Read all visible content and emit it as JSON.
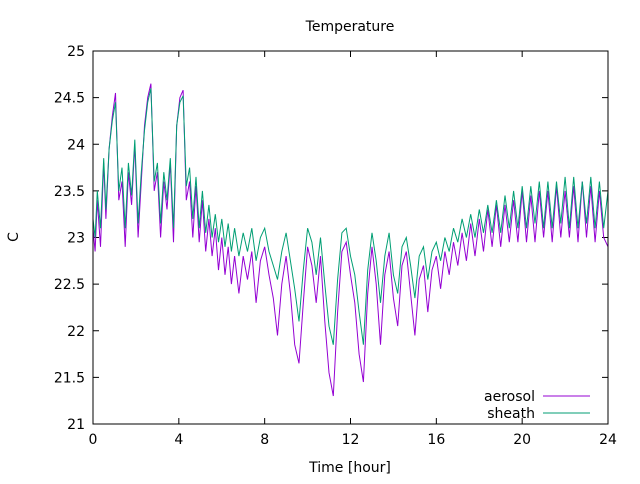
{
  "chart_data": {
    "type": "line",
    "title": "Temperature",
    "xlabel": "Time [hour]",
    "ylabel": "C",
    "xlim": [
      0,
      24
    ],
    "ylim": [
      21,
      25
    ],
    "xticks": [
      0,
      4,
      8,
      12,
      16,
      20,
      24
    ],
    "xtick_labels": [
      "0",
      "4",
      "8",
      "12",
      "16",
      "20",
      "24"
    ],
    "yticks": [
      21,
      21.5,
      22,
      22.5,
      23,
      23.5,
      24,
      24.5,
      25
    ],
    "ytick_labels": [
      "21",
      "21.5",
      "22",
      "22.5",
      "23",
      "23.5",
      "24",
      "24.5",
      "25"
    ],
    "grid": false,
    "legend_position": "bottom-right",
    "series": [
      {
        "name": "aerosol",
        "color": "#9400d3",
        "x": [
          0,
          0.1,
          0.2,
          0.35,
          0.5,
          0.6,
          0.75,
          0.9,
          1.05,
          1.2,
          1.35,
          1.5,
          1.65,
          1.8,
          1.95,
          2.1,
          2.25,
          2.4,
          2.55,
          2.7,
          2.85,
          3.0,
          3.15,
          3.3,
          3.45,
          3.6,
          3.75,
          3.9,
          4.05,
          4.2,
          4.35,
          4.5,
          4.65,
          4.8,
          4.95,
          5.1,
          5.25,
          5.4,
          5.55,
          5.7,
          5.85,
          6.0,
          6.15,
          6.3,
          6.45,
          6.6,
          6.8,
          7.0,
          7.2,
          7.4,
          7.6,
          7.8,
          8.0,
          8.2,
          8.4,
          8.6,
          8.8,
          9.0,
          9.2,
          9.4,
          9.6,
          9.8,
          10.0,
          10.2,
          10.4,
          10.6,
          10.8,
          11.0,
          11.2,
          11.4,
          11.6,
          11.8,
          12.0,
          12.2,
          12.4,
          12.6,
          12.8,
          13.0,
          13.2,
          13.4,
          13.6,
          13.8,
          14.0,
          14.2,
          14.4,
          14.6,
          14.8,
          15.0,
          15.2,
          15.4,
          15.6,
          15.8,
          16.0,
          16.2,
          16.4,
          16.6,
          16.8,
          17.0,
          17.2,
          17.4,
          17.6,
          17.8,
          18.0,
          18.2,
          18.4,
          18.6,
          18.8,
          19.0,
          19.2,
          19.4,
          19.6,
          19.8,
          20.0,
          20.2,
          20.4,
          20.6,
          20.8,
          21.0,
          21.2,
          21.4,
          21.6,
          21.8,
          22.0,
          22.2,
          22.4,
          22.6,
          22.8,
          23.0,
          23.2,
          23.4,
          23.6,
          23.8,
          24.0
        ],
        "y": [
          23.1,
          22.85,
          23.4,
          22.9,
          23.8,
          23.2,
          23.95,
          24.3,
          24.55,
          23.4,
          23.6,
          22.9,
          23.7,
          23.35,
          24.0,
          23.0,
          23.6,
          24.2,
          24.5,
          24.65,
          23.5,
          23.7,
          23.0,
          23.6,
          23.3,
          23.8,
          22.95,
          24.2,
          24.5,
          24.58,
          23.4,
          23.6,
          23.0,
          23.55,
          22.95,
          23.4,
          22.85,
          23.2,
          22.8,
          23.1,
          22.65,
          23.0,
          22.6,
          22.9,
          22.5,
          22.8,
          22.4,
          22.8,
          22.55,
          22.85,
          22.3,
          22.75,
          22.9,
          22.6,
          22.35,
          21.95,
          22.5,
          22.8,
          22.4,
          21.85,
          21.65,
          22.3,
          22.9,
          22.7,
          22.3,
          22.8,
          22.1,
          21.55,
          21.3,
          22.2,
          22.85,
          22.95,
          22.6,
          22.3,
          21.75,
          21.45,
          22.4,
          22.9,
          22.5,
          21.85,
          22.6,
          22.85,
          22.35,
          22.05,
          22.7,
          22.85,
          22.4,
          21.95,
          22.55,
          22.7,
          22.2,
          22.65,
          22.8,
          22.45,
          22.85,
          22.6,
          22.95,
          22.7,
          23.05,
          22.75,
          23.15,
          22.8,
          23.2,
          22.85,
          23.3,
          22.9,
          23.35,
          22.9,
          23.35,
          22.95,
          23.4,
          22.95,
          23.5,
          22.95,
          23.45,
          22.95,
          23.5,
          23.0,
          23.5,
          22.95,
          23.55,
          23.0,
          23.5,
          23.0,
          23.55,
          22.95,
          23.6,
          23.0,
          23.55,
          22.95,
          23.5,
          23.0,
          22.9
        ]
      },
      {
        "name": "sheath",
        "color": "#009e73",
        "x": [
          0,
          0.1,
          0.2,
          0.35,
          0.5,
          0.6,
          0.75,
          0.9,
          1.05,
          1.2,
          1.35,
          1.5,
          1.65,
          1.8,
          1.95,
          2.1,
          2.25,
          2.4,
          2.55,
          2.7,
          2.85,
          3.0,
          3.15,
          3.3,
          3.45,
          3.6,
          3.75,
          3.9,
          4.05,
          4.2,
          4.35,
          4.5,
          4.65,
          4.8,
          4.95,
          5.1,
          5.25,
          5.4,
          5.55,
          5.7,
          5.85,
          6.0,
          6.15,
          6.3,
          6.45,
          6.6,
          6.8,
          7.0,
          7.2,
          7.4,
          7.6,
          7.8,
          8.0,
          8.2,
          8.4,
          8.6,
          8.8,
          9.0,
          9.2,
          9.4,
          9.6,
          9.8,
          10.0,
          10.2,
          10.4,
          10.6,
          10.8,
          11.0,
          11.2,
          11.4,
          11.6,
          11.8,
          12.0,
          12.2,
          12.4,
          12.6,
          12.8,
          13.0,
          13.2,
          13.4,
          13.6,
          13.8,
          14.0,
          14.2,
          14.4,
          14.6,
          14.8,
          15.0,
          15.2,
          15.4,
          15.6,
          15.8,
          16.0,
          16.2,
          16.4,
          16.6,
          16.8,
          17.0,
          17.2,
          17.4,
          17.6,
          17.8,
          18.0,
          18.2,
          18.4,
          18.6,
          18.8,
          19.0,
          19.2,
          19.4,
          19.6,
          19.8,
          20.0,
          20.2,
          20.4,
          20.6,
          20.8,
          21.0,
          21.2,
          21.4,
          21.6,
          21.8,
          22.0,
          22.2,
          22.4,
          22.6,
          22.8,
          23.0,
          23.2,
          23.4,
          23.6,
          23.8,
          24.0
        ],
        "y": [
          23.2,
          23.0,
          23.5,
          23.1,
          23.85,
          23.3,
          23.95,
          24.25,
          24.45,
          23.5,
          23.75,
          23.1,
          23.8,
          23.45,
          24.05,
          23.15,
          23.7,
          24.15,
          24.45,
          24.6,
          23.6,
          23.8,
          23.15,
          23.7,
          23.4,
          23.85,
          23.1,
          24.2,
          24.45,
          24.52,
          23.55,
          23.75,
          23.2,
          23.65,
          23.1,
          23.5,
          23.05,
          23.35,
          23.0,
          23.25,
          22.95,
          23.2,
          22.9,
          23.15,
          22.85,
          23.1,
          22.8,
          23.05,
          22.85,
          23.1,
          22.75,
          23.0,
          23.1,
          22.85,
          22.7,
          22.55,
          22.85,
          23.05,
          22.75,
          22.45,
          22.1,
          22.65,
          23.1,
          22.95,
          22.6,
          23.0,
          22.5,
          22.05,
          21.85,
          22.55,
          23.05,
          23.1,
          22.8,
          22.6,
          22.2,
          21.85,
          22.65,
          23.05,
          22.75,
          22.3,
          22.8,
          23.05,
          22.6,
          22.4,
          22.9,
          23.0,
          22.7,
          22.35,
          22.8,
          22.9,
          22.55,
          22.85,
          22.95,
          22.75,
          23.0,
          22.85,
          23.1,
          22.95,
          23.2,
          23.0,
          23.25,
          23.0,
          23.3,
          23.05,
          23.35,
          23.05,
          23.4,
          23.05,
          23.45,
          23.1,
          23.5,
          23.1,
          23.55,
          23.1,
          23.55,
          23.15,
          23.6,
          23.1,
          23.6,
          23.1,
          23.6,
          23.15,
          23.65,
          23.1,
          23.65,
          23.1,
          23.6,
          23.15,
          23.65,
          23.1,
          23.6,
          23.1,
          23.5
        ]
      }
    ]
  }
}
